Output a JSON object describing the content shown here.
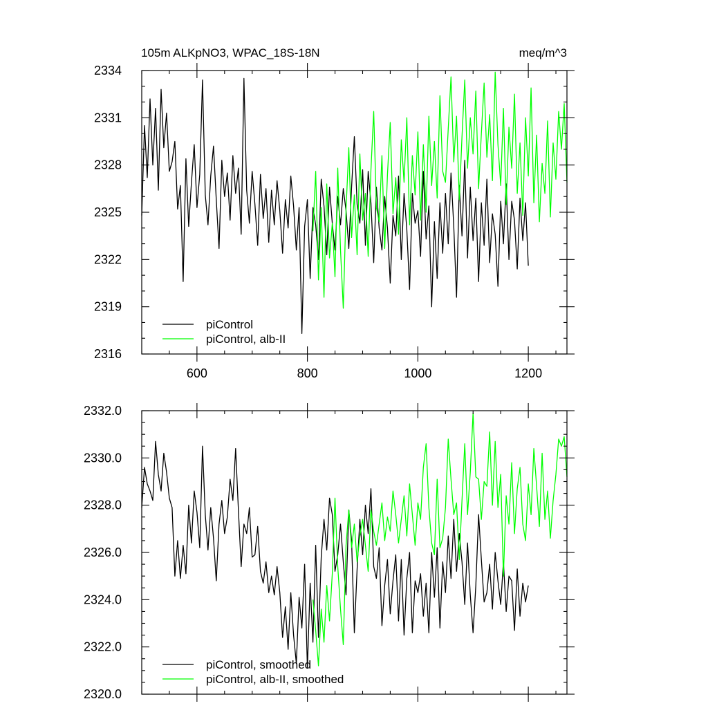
{
  "chart_data": [
    {
      "type": "line",
      "title": "105m ALKpNO3, WPAC_18S-18N",
      "units": "meq/m^3",
      "xlabel": "",
      "ylabel": "",
      "xlim": [
        500,
        1270
      ],
      "ylim": [
        2316,
        2334
      ],
      "xticks": [
        600,
        800,
        1000,
        1200
      ],
      "yticks": [
        2316,
        2319,
        2322,
        2325,
        2328,
        2331,
        2334
      ],
      "xtick_labels": [
        "600",
        "800",
        "1000",
        "1200"
      ],
      "ytick_labels": [
        "2316",
        "2319",
        "2322",
        "2325",
        "2328",
        "2331",
        "2334"
      ],
      "grid": false,
      "legend_position": "bottom-left",
      "series": [
        {
          "name": "piControl",
          "color": "#000000",
          "x": [
            500,
            505,
            510,
            515,
            520,
            525,
            530,
            535,
            540,
            545,
            550,
            555,
            560,
            565,
            570,
            575,
            580,
            585,
            590,
            595,
            600,
            605,
            610,
            615,
            620,
            625,
            630,
            635,
            640,
            645,
            650,
            655,
            660,
            665,
            670,
            675,
            680,
            685,
            690,
            695,
            700,
            705,
            710,
            715,
            720,
            725,
            730,
            735,
            740,
            745,
            750,
            755,
            760,
            765,
            770,
            775,
            780,
            785,
            790,
            795,
            800,
            805,
            810,
            815,
            820,
            825,
            830,
            835,
            840,
            845,
            850,
            855,
            860,
            865,
            870,
            875,
            880,
            885,
            890,
            895,
            900,
            905,
            910,
            915,
            920,
            925,
            930,
            935,
            940,
            945,
            950,
            955,
            960,
            965,
            970,
            975,
            980,
            985,
            990,
            995,
            1000,
            1005,
            1010,
            1015,
            1020,
            1025,
            1030,
            1035,
            1040,
            1045,
            1050,
            1055,
            1060,
            1065,
            1070,
            1075,
            1080,
            1085,
            1090,
            1095,
            1100,
            1105,
            1110,
            1115,
            1120,
            1125,
            1130,
            1135,
            1140,
            1145,
            1150,
            1155,
            1160,
            1165,
            1170,
            1175,
            1180,
            1185,
            1190,
            1195,
            1200
          ],
          "y": [
            2324.8,
            2330.5,
            2327.2,
            2332.2,
            2328.0,
            2331.6,
            2326.4,
            2332.8,
            2329.1,
            2331.3,
            2327.6,
            2328.2,
            2329.5,
            2325.2,
            2326.7,
            2320.6,
            2328.4,
            2324.1,
            2326.9,
            2329.3,
            2325.3,
            2327.4,
            2333.4,
            2326.1,
            2324.2,
            2327.3,
            2329.2,
            2325.8,
            2322.7,
            2328.3,
            2326.0,
            2327.5,
            2324.5,
            2328.6,
            2326.2,
            2327.8,
            2323.6,
            2333.5,
            2326.4,
            2324.3,
            2327.6,
            2325.5,
            2322.9,
            2327.4,
            2324.6,
            2326.5,
            2323.1,
            2326.4,
            2324.2,
            2327.0,
            2325.1,
            2322.4,
            2325.8,
            2324.0,
            2327.3,
            2325.4,
            2322.6,
            2325.3,
            2317.3,
            2324.1,
            2325.8,
            2320.8,
            2325.3,
            2324.2,
            2322.0,
            2327.1,
            2325.4,
            2322.3,
            2326.6,
            2324.3,
            2322.6,
            2326.0,
            2324.2,
            2326.5,
            2325.1,
            2322.7,
            2326.6,
            2329.8,
            2325.5,
            2324.3,
            2327.7,
            2322.9,
            2327.6,
            2325.6,
            2321.8,
            2326.6,
            2324.0,
            2322.6,
            2326.0,
            2324.0,
            2320.5,
            2324.8,
            2323.5,
            2327.3,
            2322.0,
            2326.2,
            2323.9,
            2320.1,
            2326.2,
            2324.3,
            2325.1,
            2322.2,
            2327.6,
            2323.3,
            2325.4,
            2319.0,
            2324.4,
            2320.8,
            2325.6,
            2322.4,
            2326.2,
            2323.0,
            2327.5,
            2324.1,
            2319.6,
            2326.7,
            2323.5,
            2328.3,
            2322.1,
            2326.6,
            2323.2,
            2325.9,
            2320.6,
            2325.6,
            2322.9,
            2327.1,
            2321.8,
            2324.9,
            2323.6,
            2320.3,
            2325.7,
            2323.0,
            2326.8,
            2322.0,
            2325.7,
            2324.5,
            2321.4,
            2325.9,
            2323.2,
            2325.6,
            2321.6
          ]
        },
        {
          "name": "piControl, alb-II",
          "color": "#00ff00",
          "x": [
            810,
            815,
            820,
            825,
            830,
            835,
            840,
            845,
            850,
            855,
            860,
            865,
            870,
            875,
            880,
            885,
            890,
            895,
            900,
            905,
            910,
            915,
            920,
            925,
            930,
            935,
            940,
            945,
            950,
            955,
            960,
            965,
            970,
            975,
            980,
            985,
            990,
            995,
            1000,
            1005,
            1010,
            1015,
            1020,
            1025,
            1030,
            1035,
            1040,
            1045,
            1050,
            1055,
            1060,
            1065,
            1070,
            1075,
            1080,
            1085,
            1090,
            1095,
            1100,
            1105,
            1110,
            1115,
            1120,
            1125,
            1130,
            1135,
            1140,
            1145,
            1150,
            1155,
            1160,
            1165,
            1170,
            1175,
            1180,
            1185,
            1190,
            1195,
            1200,
            1205,
            1210,
            1215,
            1220,
            1225,
            1230,
            1235,
            1240,
            1245,
            1250,
            1255,
            1260,
            1265,
            1270
          ],
          "y": [
            2323.8,
            2327.6,
            2320.7,
            2325.3,
            2319.6,
            2326.8,
            2322.1,
            2324.3,
            2320.9,
            2327.8,
            2322.6,
            2318.9,
            2325.2,
            2329.1,
            2323.4,
            2326.1,
            2322.3,
            2328.7,
            2324.5,
            2326.2,
            2322.2,
            2327.7,
            2331.4,
            2325.3,
            2324.4,
            2328.6,
            2322.7,
            2327.4,
            2330.7,
            2324.9,
            2327.2,
            2323.6,
            2329.6,
            2326.9,
            2331.0,
            2324.2,
            2328.6,
            2326.1,
            2330.1,
            2324.5,
            2329.3,
            2325.0,
            2331.1,
            2326.7,
            2329.5,
            2325.9,
            2332.4,
            2327.6,
            2326.9,
            2330.3,
            2333.6,
            2328.2,
            2331.1,
            2325.8,
            2329.8,
            2333.4,
            2327.8,
            2331.0,
            2328.7,
            2332.7,
            2326.5,
            2330.0,
            2333.2,
            2328.5,
            2331.2,
            2327.0,
            2333.9,
            2329.3,
            2326.7,
            2331.6,
            2325.5,
            2330.4,
            2327.8,
            2332.5,
            2326.2,
            2329.4,
            2324.8,
            2331.0,
            2327.3,
            2332.9,
            2325.6,
            2329.9,
            2324.4,
            2328.1,
            2326.2,
            2330.8,
            2324.7,
            2329.4,
            2327.1,
            2331.4,
            2329.0,
            2331.9,
            2326.9
          ]
        }
      ]
    },
    {
      "type": "line",
      "title": "",
      "xlabel": "",
      "ylabel": "",
      "xlim": [
        500,
        1270
      ],
      "ylim": [
        2320.0,
        2332.0
      ],
      "xticks": [
        600,
        800,
        1000,
        1200
      ],
      "yticks": [
        2320,
        2322,
        2324,
        2326,
        2328,
        2330,
        2332
      ],
      "ytick_labels": [
        "2320.0",
        "2322.0",
        "2324.0",
        "2326.0",
        "2328.0",
        "2330.0",
        "2332.0"
      ],
      "grid": false,
      "legend_position": "bottom-left",
      "series": [
        {
          "name": "piControl, smoothed",
          "color": "#000000",
          "x": [
            500,
            505,
            510,
            515,
            520,
            525,
            530,
            535,
            540,
            545,
            550,
            555,
            560,
            565,
            570,
            575,
            580,
            585,
            590,
            595,
            600,
            605,
            610,
            615,
            620,
            625,
            630,
            635,
            640,
            645,
            650,
            655,
            660,
            665,
            670,
            675,
            680,
            685,
            690,
            695,
            700,
            705,
            710,
            715,
            720,
            725,
            730,
            735,
            740,
            745,
            750,
            755,
            760,
            765,
            770,
            775,
            780,
            785,
            790,
            795,
            800,
            805,
            810,
            815,
            820,
            825,
            830,
            835,
            840,
            845,
            850,
            855,
            860,
            865,
            870,
            875,
            880,
            885,
            890,
            895,
            900,
            905,
            910,
            915,
            920,
            925,
            930,
            935,
            940,
            945,
            950,
            955,
            960,
            965,
            970,
            975,
            980,
            985,
            990,
            995,
            1000,
            1005,
            1010,
            1015,
            1020,
            1025,
            1030,
            1035,
            1040,
            1045,
            1050,
            1055,
            1060,
            1065,
            1070,
            1075,
            1080,
            1085,
            1090,
            1095,
            1100,
            1105,
            1110,
            1115,
            1120,
            1125,
            1130,
            1135,
            1140,
            1145,
            1150,
            1155,
            1160,
            1165,
            1170,
            1175,
            1180,
            1185,
            1190,
            1195,
            1200
          ],
          "y": [
            2327.9,
            2329.6,
            2328.9,
            2328.6,
            2328.2,
            2330.7,
            2329.3,
            2328.6,
            2330.2,
            2329.4,
            2328.3,
            2327.9,
            2325.0,
            2326.5,
            2324.9,
            2326.3,
            2325.1,
            2328.0,
            2326.4,
            2328.6,
            2327.7,
            2326.2,
            2330.5,
            2327.6,
            2326.1,
            2327.9,
            2326.6,
            2324.8,
            2327.2,
            2328.2,
            2326.8,
            2327.5,
            2329.1,
            2328.2,
            2330.4,
            2327.8,
            2325.4,
            2327.2,
            2326.8,
            2327.9,
            2325.8,
            2325.9,
            2327.1,
            2325.2,
            2324.7,
            2325.6,
            2324.3,
            2325.0,
            2324.2,
            2325.4,
            2324.3,
            2322.4,
            2323.7,
            2321.9,
            2324.3,
            2322.5,
            2321.3,
            2324.1,
            2322.8,
            2325.5,
            2321.1,
            2324.7,
            2322.2,
            2326.3,
            2322.4,
            2325.8,
            2327.4,
            2326.1,
            2328.3,
            2327.6,
            2325.2,
            2325.9,
            2327.2,
            2325.6,
            2324.2,
            2327.8,
            2326.5,
            2322.6,
            2325.3,
            2327.4,
            2325.9,
            2328.0,
            2326.8,
            2328.7,
            2325.4,
            2324.9,
            2326.2,
            2322.9,
            2324.6,
            2325.7,
            2323.4,
            2324.8,
            2325.9,
            2323.1,
            2325.7,
            2322.5,
            2324.9,
            2326.0,
            2322.6,
            2324.8,
            2324.3,
            2325.1,
            2323.3,
            2324.7,
            2322.6,
            2326.0,
            2324.1,
            2326.2,
            2322.8,
            2325.6,
            2324.3,
            2326.7,
            2324.9,
            2327.4,
            2325.2,
            2326.8,
            2325.6,
            2323.8,
            2326.4,
            2324.2,
            2322.6,
            2324.6,
            2327.6,
            2325.7,
            2323.9,
            2324.3,
            2325.5,
            2323.6,
            2326.0,
            2324.8,
            2323.8,
            2325.6,
            2323.5,
            2325.0,
            2324.8,
            2322.7,
            2325.3,
            2323.3,
            2324.7,
            2323.9,
            2324.6
          ]
        },
        {
          "name": "piControl, alb-II, smoothed",
          "color": "#00ff00",
          "x": [
            810,
            815,
            820,
            825,
            830,
            835,
            840,
            845,
            850,
            855,
            860,
            865,
            870,
            875,
            880,
            885,
            890,
            895,
            900,
            905,
            910,
            915,
            920,
            925,
            930,
            935,
            940,
            945,
            950,
            955,
            960,
            965,
            970,
            975,
            980,
            985,
            990,
            995,
            1000,
            1005,
            1010,
            1015,
            1020,
            1025,
            1030,
            1035,
            1040,
            1045,
            1050,
            1055,
            1060,
            1065,
            1070,
            1075,
            1080,
            1085,
            1090,
            1095,
            1100,
            1105,
            1110,
            1115,
            1120,
            1125,
            1130,
            1135,
            1140,
            1145,
            1150,
            1155,
            1160,
            1165,
            1170,
            1175,
            1180,
            1185,
            1190,
            1195,
            1200,
            1205,
            1210,
            1215,
            1220,
            1225,
            1230,
            1235,
            1240,
            1245,
            1250,
            1255,
            1260,
            1265,
            1270
          ],
          "y": [
            2324.0,
            2322.7,
            2321.2,
            2323.6,
            2322.2,
            2324.6,
            2323.1,
            2325.1,
            2328.3,
            2325.4,
            2323.6,
            2322.1,
            2326.3,
            2327.8,
            2326.2,
            2327.2,
            2325.6,
            2326.7,
            2327.4,
            2326.3,
            2325.2,
            2327.8,
            2326.9,
            2326.3,
            2327.2,
            2328.1,
            2326.5,
            2327.5,
            2326.9,
            2328.6,
            2327.6,
            2326.4,
            2327.4,
            2328.4,
            2326.7,
            2328.9,
            2327.6,
            2326.3,
            2328.1,
            2327.4,
            2329.6,
            2330.6,
            2327.9,
            2326.4,
            2325.9,
            2329.1,
            2326.2,
            2326.6,
            2327.9,
            2330.8,
            2329.1,
            2327.6,
            2328.1,
            2325.7,
            2328.2,
            2330.6,
            2327.6,
            2329.4,
            2331.9,
            2329.2,
            2329.1,
            2327.4,
            2329.0,
            2328.8,
            2331.1,
            2328.0,
            2330.7,
            2327.9,
            2329.3,
            2325.0,
            2328.4,
            2327.2,
            2329.8,
            2326.8,
            2328.7,
            2329.6,
            2327.2,
            2326.5,
            2328.9,
            2327.6,
            2330.4,
            2328.8,
            2327.1,
            2330.2,
            2327.4,
            2328.6,
            2326.6,
            2328.2,
            2329.3,
            2330.8,
            2330.5,
            2330.9,
            2329.2
          ]
        }
      ]
    }
  ]
}
